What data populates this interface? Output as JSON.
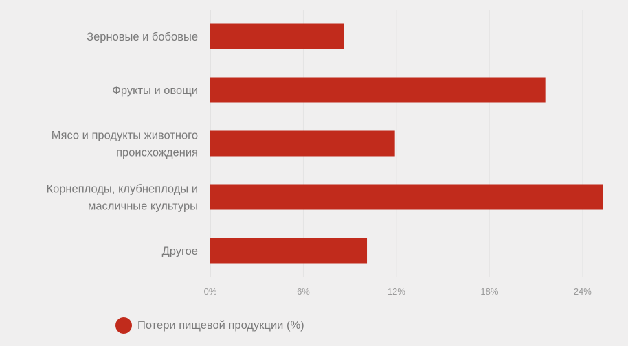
{
  "chart_data": {
    "type": "bar",
    "orientation": "horizontal",
    "categories": [
      "Зерновые и бобовые",
      "Фрукты и овощи",
      "Мясо и продукты животного происхождения",
      "Корнеплоды, клубнеплоды и масличные культуры",
      "Другое"
    ],
    "category_lines": [
      [
        "Зерновые и бобовые"
      ],
      [
        "Фрукты и овощи"
      ],
      [
        "Мясо и продукты животного",
        "происхождения"
      ],
      [
        "Корнеплоды, клубнеплоды и",
        "масличные культуры"
      ],
      [
        "Другое"
      ]
    ],
    "series": [
      {
        "name": "Потери пищевой продукции (%)",
        "values": [
          8.6,
          21.6,
          11.9,
          25.3,
          10.1
        ],
        "color": "#c12b1c"
      }
    ],
    "xlim": [
      0,
      26
    ],
    "xticks": [
      0,
      6,
      12,
      18,
      24
    ],
    "xtick_labels": [
      "0%",
      "6%",
      "12%",
      "18%",
      "24%"
    ],
    "grid": true,
    "legend": "bottom-left",
    "title": "",
    "xlabel": "",
    "ylabel": ""
  }
}
